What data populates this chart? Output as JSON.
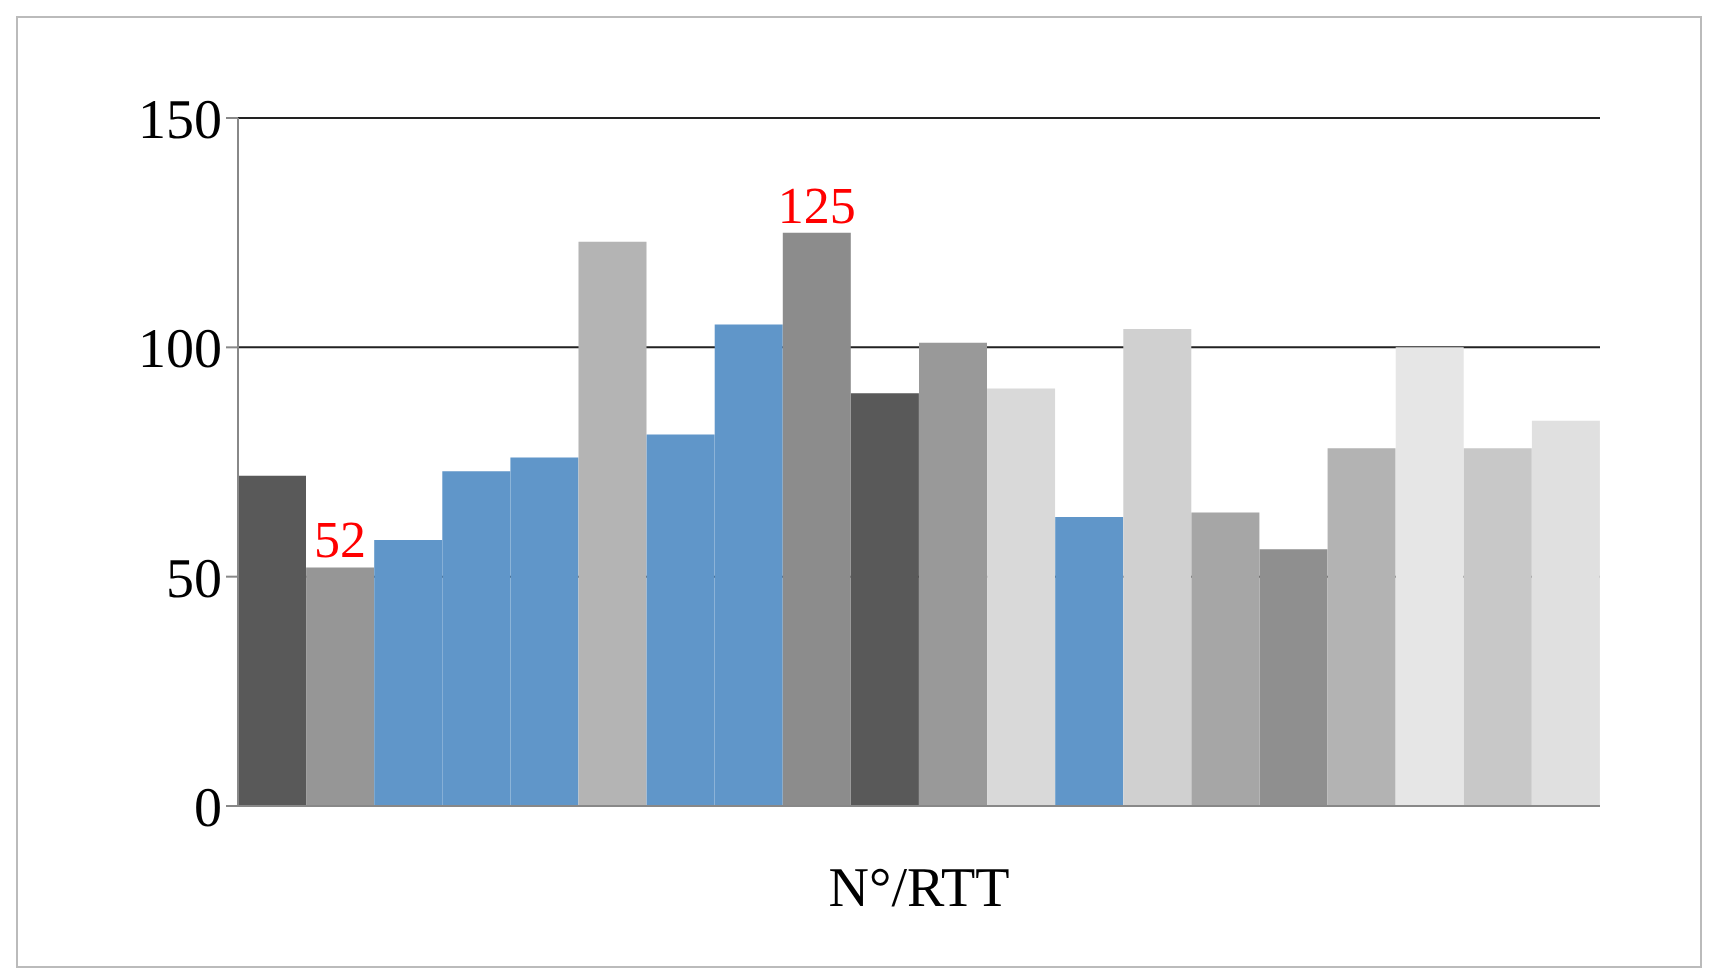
{
  "chart_data": {
    "type": "bar",
    "xlabel": "N°/RTT",
    "categories": [
      null,
      null,
      null,
      null,
      null,
      null,
      null,
      null,
      null,
      null,
      null,
      null,
      null,
      null,
      null,
      null,
      null,
      null,
      null,
      null
    ],
    "values": [
      72,
      52,
      58,
      73,
      76,
      123,
      81,
      105,
      125,
      90,
      101,
      91,
      63,
      104,
      64,
      56,
      78,
      100,
      78,
      84
    ],
    "colors": [
      "#595959",
      "#969696",
      "#6096c9",
      "#6096c9",
      "#6096c9",
      "#b4b4b4",
      "#6096c9",
      "#6096c9",
      "#8c8c8c",
      "#595959",
      "#999999",
      "#d9d9d9",
      "#6096c9",
      "#d0d0d0",
      "#a6a6a6",
      "#8f8f8f",
      "#b3b3b3",
      "#e6e6e6",
      "#c8c8c8",
      "#e0e0e0"
    ],
    "value_labels": [
      null,
      "52",
      null,
      null,
      null,
      null,
      null,
      null,
      "125",
      null,
      null,
      null,
      null,
      null,
      null,
      null,
      null,
      null,
      null,
      null
    ],
    "ylim": [
      0,
      150
    ],
    "yticks": [
      0,
      50,
      100,
      150
    ],
    "grid": "y"
  }
}
